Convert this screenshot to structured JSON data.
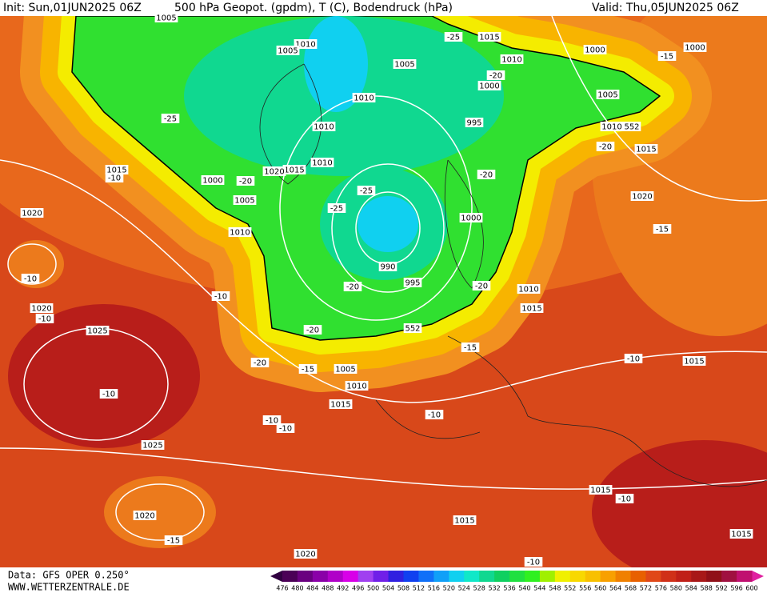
{
  "header": {
    "init": "Init: Sun,01JUN2025 06Z",
    "title": "500 hPa Geopot. (gpdm), T (C), Bodendruck (hPa)",
    "valid": "Valid: Thu,05JUN2025 06Z"
  },
  "footer": {
    "data": "Data: GFS OPER 0.250°",
    "site": "WWW.WETTERZENTRALE.DE"
  },
  "colorbar": {
    "labels": [
      "476",
      "480",
      "484",
      "488",
      "492",
      "496",
      "500",
      "504",
      "508",
      "512",
      "516",
      "520",
      "524",
      "528",
      "532",
      "536",
      "540",
      "544",
      "548",
      "552",
      "556",
      "560",
      "564",
      "568",
      "572",
      "576",
      "580",
      "584",
      "588",
      "592",
      "596",
      "600"
    ],
    "colors": [
      "#4b0057",
      "#6a0080",
      "#8a00a8",
      "#b000c8",
      "#d800e8",
      "#a040f0",
      "#7020e8",
      "#3020e0",
      "#1040f0",
      "#1070f8",
      "#10a0f8",
      "#10d0f0",
      "#10e8c8",
      "#10d890",
      "#10d060",
      "#20e040",
      "#30f020",
      "#a0f000",
      "#f0f000",
      "#f8d800",
      "#f8c000",
      "#f8a000",
      "#f08000",
      "#e86000",
      "#e04818",
      "#d03018",
      "#c02018",
      "#a81818",
      "#901018",
      "#a01040",
      "#c01070"
    ],
    "low_color": "#300040",
    "high_color": "#e020a0"
  },
  "map_labels": [
    "1005",
    "1010",
    "1005",
    "1005",
    "1015",
    "1010",
    "1000",
    "1000",
    "1000",
    "1010",
    "1005",
    "1010",
    "995",
    "1010",
    "1015",
    "1015",
    "1015",
    "1020",
    "1010",
    "1000",
    "1005",
    "1020",
    "1020",
    "1000",
    "1010",
    "990",
    "995",
    "1010",
    "1015",
    "1020",
    "1025",
    "1005",
    "1010",
    "1015",
    "1015",
    "1025",
    "1020",
    "1015",
    "1015",
    "1015",
    "1020",
    "-25",
    "-25",
    "-25",
    "-20",
    "-20",
    "-20",
    "-20",
    "-20",
    "-20",
    "-20",
    "-15",
    "-15",
    "-15",
    "-15",
    "-10",
    "-10",
    "-10",
    "-10",
    "-10",
    "-10",
    "-10",
    "-10",
    "-10",
    "-10",
    "-10",
    "-15",
    "-25",
    "-20",
    "552",
    "552"
  ]
}
